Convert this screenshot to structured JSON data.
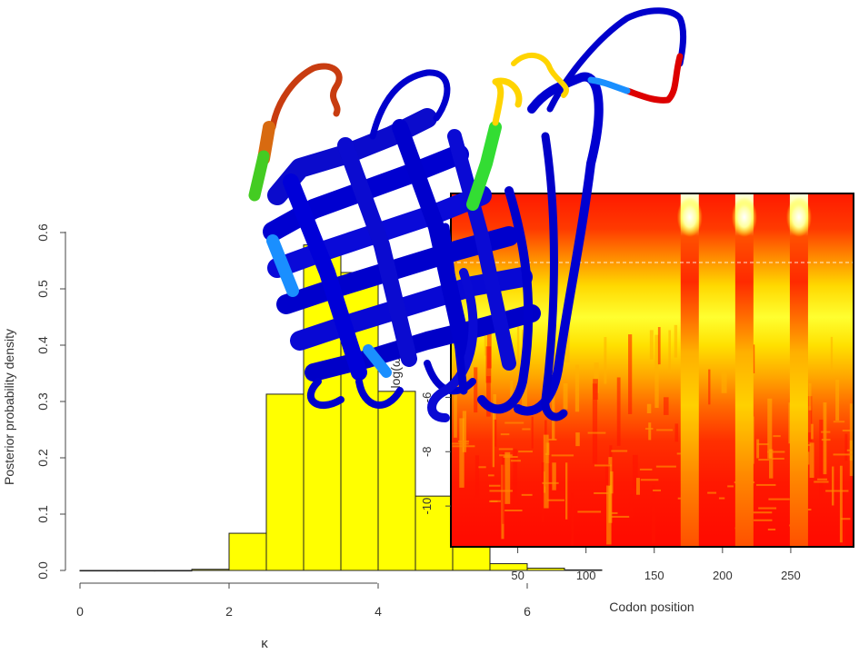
{
  "chart_data": [
    {
      "type": "bar",
      "subtype": "histogram",
      "xlabel": "κ",
      "ylabel": "Posterior probability density",
      "xlim": [
        0,
        7.5
      ],
      "ylim": [
        0,
        0.6
      ],
      "xticks": [
        "0",
        "2",
        "4",
        "6"
      ],
      "yticks": [
        "0.0",
        "0.1",
        "0.2",
        "0.3",
        "0.4",
        "0.5",
        "0.6"
      ],
      "bin_edges": [
        0,
        0.5,
        1.0,
        1.5,
        2.0,
        2.5,
        3.0,
        3.5,
        4.0,
        4.5,
        5.0,
        5.5,
        6.0,
        6.5,
        7.0
      ],
      "values": [
        0.0,
        0.0,
        0.0,
        0.002,
        0.066,
        0.313,
        0.578,
        0.529,
        0.318,
        0.132,
        0.043,
        0.012,
        0.004,
        0.001
      ],
      "bar_color": "#ffff00",
      "grid": false
    },
    {
      "type": "heatmap",
      "xlabel": "Codon position",
      "ylabel": "log(ω)",
      "xticks": [
        "50",
        "100",
        "150",
        "200",
        "250"
      ],
      "yticks": [
        "-6",
        "-8",
        "-10"
      ],
      "xlim": [
        1,
        296
      ],
      "ylim": [
        -11.5,
        1.5
      ],
      "colormap": "heat (red → orange → yellow → white)",
      "high_density_columns": [
        176,
        216,
        256
      ],
      "reference_line": {
        "style": "dashed",
        "color": "#ffffff",
        "y": 0
      }
    }
  ],
  "overlay": {
    "description_icon": "protein-ribbon-structure",
    "colors": [
      "#0000cc",
      "#1a8fff",
      "#22cc22",
      "#ffdd00",
      "#ff8800",
      "#dd0000",
      "#cc6600"
    ]
  }
}
